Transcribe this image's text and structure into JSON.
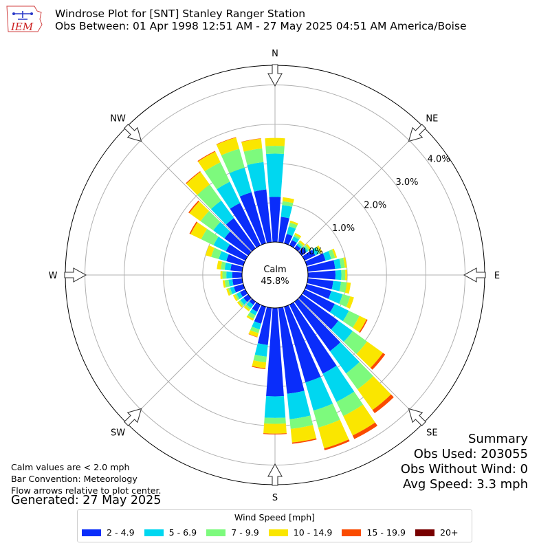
{
  "header": {
    "title_line1": "Windrose Plot for [SNT] Stanley Ranger Station",
    "title_line2": "Obs Between: 01 Apr 1998 12:51 AM - 27 May 2025 04:51 AM America/Boise",
    "logo_text": "IEM"
  },
  "notes": {
    "line1": "Calm values are < 2.0 mph",
    "line2": "Bar Convention: Meteorology",
    "line3": "Flow arrows relative to plot center.",
    "generated": "Generated: 27 May 2025"
  },
  "summary": {
    "title": "Summary",
    "obs_used": "Obs Used: 203055",
    "obs_without_wind": "Obs Without Wind: 0",
    "avg_speed": "Avg Speed: 3.3 mph"
  },
  "chart_data": {
    "type": "windrose",
    "calm_label": "Calm",
    "calm_value": "45.8%",
    "radial_unit": "%",
    "radial_ticks": [
      "0.0%",
      "1.0%",
      "2.0%",
      "3.0%",
      "4.0%"
    ],
    "radial_max": 4.5,
    "compass_labels": [
      "N",
      "NE",
      "E",
      "SE",
      "S",
      "SW",
      "W",
      "NW"
    ],
    "legend_title": "Wind Speed [mph]",
    "bins": [
      {
        "label": "2 - 4.9",
        "color": "#0a2dfa"
      },
      {
        "label": "5 - 6.9",
        "color": "#00d7f0"
      },
      {
        "label": "7 - 9.9",
        "color": "#7dfa7d"
      },
      {
        "label": "10 - 14.9",
        "color": "#fae600"
      },
      {
        "label": "15 - 19.9",
        "color": "#fa4b00"
      },
      {
        "label": "20+",
        "color": "#780000"
      }
    ],
    "directions_deg": [
      0,
      10,
      20,
      30,
      40,
      50,
      60,
      70,
      80,
      90,
      100,
      110,
      120,
      130,
      140,
      150,
      160,
      170,
      180,
      190,
      200,
      210,
      220,
      230,
      240,
      250,
      260,
      270,
      280,
      290,
      300,
      310,
      320,
      330,
      340,
      350
    ],
    "cumulative_pct": [
      [
        1.15,
        2.25,
        2.45,
        2.65,
        2.65,
        2.65
      ],
      [
        0.65,
        0.95,
        1.05,
        1.15,
        1.15,
        1.15
      ],
      [
        0.25,
        0.45,
        0.55,
        0.6,
        0.6,
        0.6
      ],
      [
        0.15,
        0.25,
        0.3,
        0.35,
        0.35,
        0.35
      ],
      [
        0.1,
        0.15,
        0.2,
        0.25,
        0.25,
        0.25
      ],
      [
        0.15,
        0.2,
        0.25,
        0.3,
        0.3,
        0.3
      ],
      [
        0.3,
        0.4,
        0.45,
        0.5,
        0.5,
        0.5
      ],
      [
        0.5,
        0.65,
        0.75,
        0.8,
        0.8,
        0.8
      ],
      [
        0.7,
        0.85,
        0.95,
        1.0,
        1.0,
        1.0
      ],
      [
        0.7,
        0.85,
        0.95,
        1.0,
        1.0,
        1.0
      ],
      [
        0.65,
        0.85,
        1.0,
        1.1,
        1.1,
        1.1
      ],
      [
        0.65,
        0.95,
        1.15,
        1.25,
        1.25,
        1.25
      ],
      [
        0.85,
        1.25,
        1.55,
        1.75,
        1.78,
        1.78
      ],
      [
        1.15,
        1.6,
        2.05,
        2.55,
        2.62,
        2.62
      ],
      [
        1.55,
        2.25,
        2.75,
        3.4,
        3.5,
        3.5
      ],
      [
        1.95,
        2.75,
        3.15,
        3.7,
        3.8,
        3.8
      ],
      [
        2.0,
        2.75,
        3.2,
        3.75,
        3.8,
        3.8
      ],
      [
        2.2,
        2.85,
        3.1,
        3.45,
        3.48,
        3.48
      ],
      [
        2.25,
        2.8,
        2.95,
        3.2,
        3.22,
        3.22
      ],
      [
        0.95,
        1.25,
        1.4,
        1.55,
        1.57,
        1.57
      ],
      [
        0.45,
        0.6,
        0.7,
        0.8,
        0.81,
        0.81
      ],
      [
        0.2,
        0.3,
        0.4,
        0.45,
        0.45,
        0.45
      ],
      [
        0.1,
        0.2,
        0.25,
        0.3,
        0.3,
        0.3
      ],
      [
        0.15,
        0.25,
        0.3,
        0.35,
        0.35,
        0.35
      ],
      [
        0.15,
        0.25,
        0.3,
        0.35,
        0.35,
        0.35
      ],
      [
        0.25,
        0.35,
        0.4,
        0.45,
        0.45,
        0.45
      ],
      [
        0.25,
        0.35,
        0.45,
        0.5,
        0.5,
        0.5
      ],
      [
        0.25,
        0.4,
        0.5,
        0.55,
        0.55,
        0.55
      ],
      [
        0.3,
        0.45,
        0.55,
        0.65,
        0.65,
        0.65
      ],
      [
        0.45,
        0.65,
        0.85,
        1.0,
        1.0,
        1.0
      ],
      [
        0.55,
        0.9,
        1.25,
        1.55,
        1.58,
        1.58
      ],
      [
        0.75,
        1.1,
        1.5,
        1.85,
        1.88,
        1.88
      ],
      [
        0.95,
        1.5,
        2.0,
        2.4,
        2.42,
        2.42
      ],
      [
        1.2,
        1.8,
        2.35,
        2.65,
        2.67,
        2.67
      ],
      [
        1.35,
        2.0,
        2.5,
        2.8,
        2.81,
        2.81
      ],
      [
        1.35,
        2.05,
        2.4,
        2.65,
        2.66,
        2.66
      ]
    ]
  }
}
